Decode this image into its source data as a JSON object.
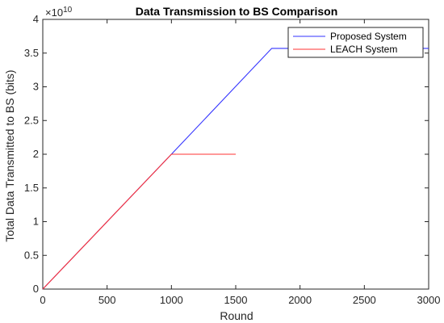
{
  "chart_data": {
    "type": "line",
    "title": "Data Transmission to BS Comparison",
    "xlabel": "Round",
    "ylabel": "Total Data Transmitted to BS (bits)",
    "y_multiplier_base": "×10",
    "y_multiplier_exp": "10",
    "xlim": [
      0,
      3000
    ],
    "ylim": [
      0,
      4
    ],
    "xticks": [
      0,
      500,
      1000,
      1500,
      2000,
      2500,
      3000
    ],
    "yticks": [
      0,
      0.5,
      1,
      1.5,
      2,
      2.5,
      3,
      3.5,
      4
    ],
    "grid": false,
    "legend_position": "top-right",
    "series": [
      {
        "name": "Proposed System",
        "color": "#3333ff",
        "x": [
          0,
          1000,
          1780,
          3000
        ],
        "y": [
          0,
          2.0,
          3.57,
          3.57
        ]
      },
      {
        "name": "LEACH System",
        "color": "#ff3333",
        "x": [
          0,
          1000,
          1500
        ],
        "y": [
          0,
          2.0,
          2.0
        ]
      }
    ]
  }
}
